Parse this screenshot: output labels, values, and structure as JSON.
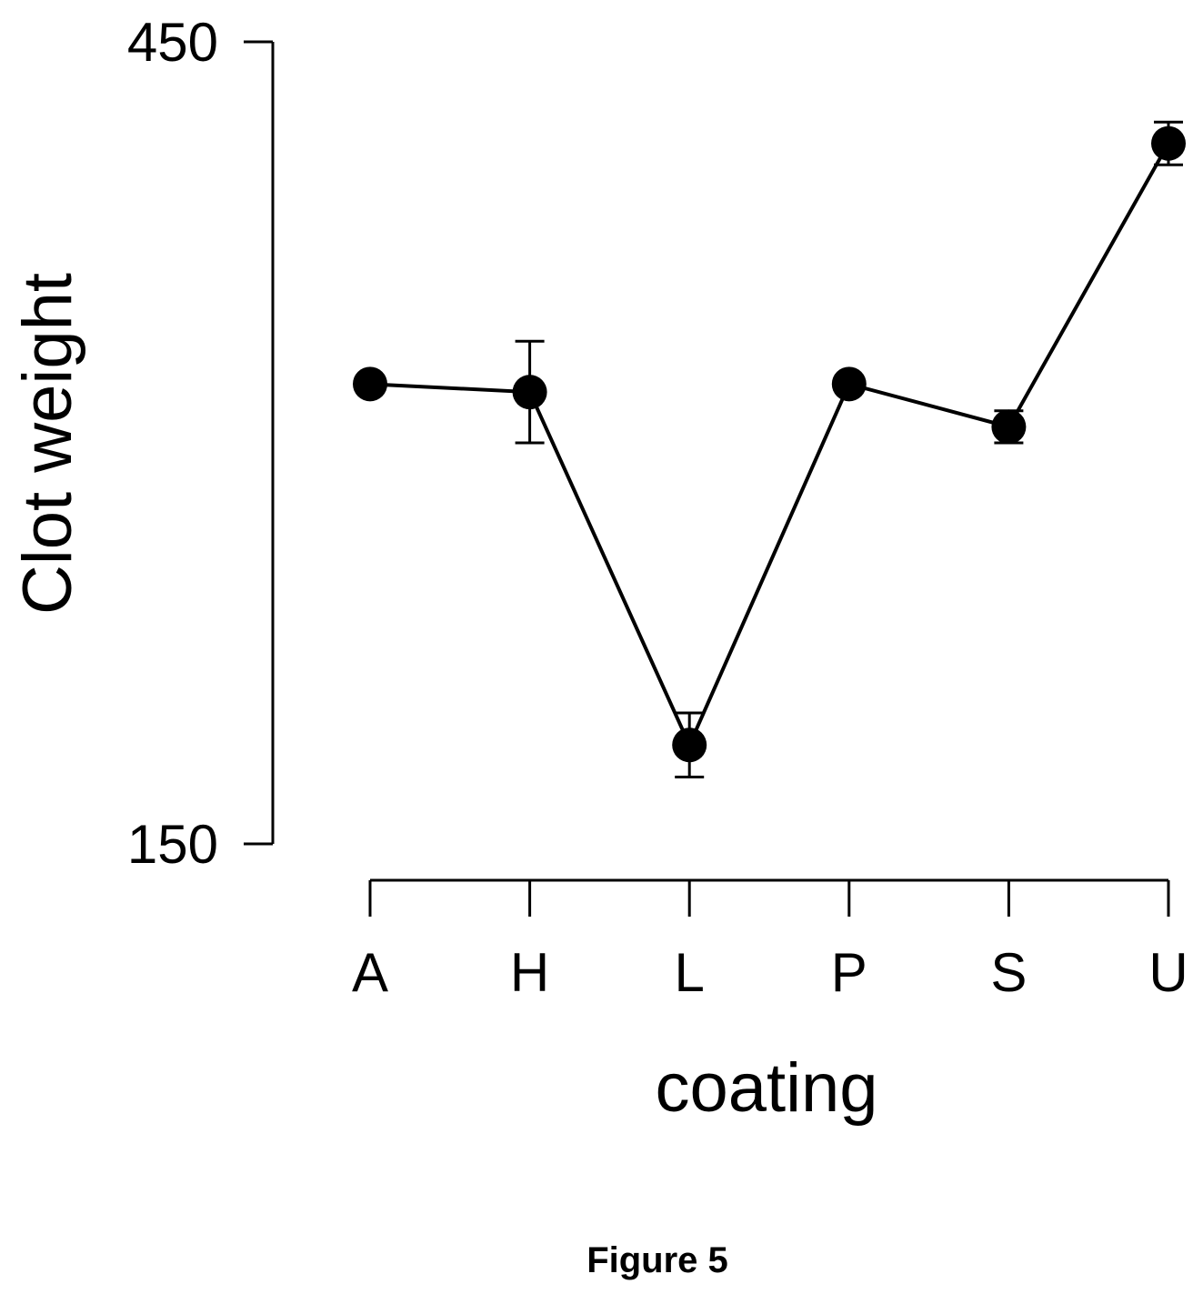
{
  "figure_caption": "Figure 5",
  "chart_data": {
    "type": "line",
    "xlabel": "coating",
    "ylabel": "Clot weight",
    "categories": [
      "A",
      "H",
      "L",
      "P",
      "S",
      "U"
    ],
    "y_ticks": [
      150,
      450
    ],
    "ylim": [
      150,
      450
    ],
    "grid": false,
    "legend": "none",
    "series": [
      {
        "values": [
          322,
          319,
          187,
          322,
          306,
          412
        ],
        "error": [
          0,
          19,
          12,
          0,
          6,
          8
        ]
      }
    ],
    "colors": {
      "line": "#000000",
      "marker": "#000000"
    }
  }
}
